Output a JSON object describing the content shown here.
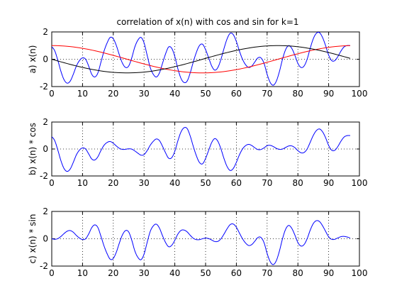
{
  "figure": {
    "title": "correlation of x(n) with cos and sin for k=1"
  },
  "colors": {
    "blue": "#0000ff",
    "red": "#ff0000",
    "black": "#000000",
    "background": "#ffffff"
  },
  "chart_data": [
    {
      "type": "line",
      "title": "correlation of x(n) with cos and sin for k=1",
      "xlabel": "",
      "ylabel": "a) x(n)",
      "xlim": [
        0,
        100
      ],
      "ylim": [
        -2,
        2
      ],
      "x_ticks": [
        0,
        10,
        20,
        30,
        40,
        50,
        60,
        70,
        80,
        90,
        100
      ],
      "y_ticks": [
        -2,
        0,
        2
      ],
      "grid": true,
      "series": [
        {
          "color": "blue",
          "x": [
            0,
            1,
            2,
            3,
            4,
            5,
            6,
            7,
            8,
            9,
            10,
            11,
            12,
            13,
            14,
            15,
            16,
            17,
            18,
            19,
            20,
            21,
            22,
            23,
            24,
            25,
            26,
            27,
            28,
            29,
            30,
            31,
            32,
            33,
            34,
            35,
            36,
            37,
            38,
            39,
            40,
            41,
            42,
            43,
            44,
            45,
            46,
            47,
            48,
            49,
            50,
            51,
            52,
            53,
            54,
            55,
            56,
            57,
            58,
            59,
            60,
            61,
            62,
            63,
            64,
            65,
            66,
            67,
            68,
            69,
            70,
            71,
            72,
            73,
            74,
            75,
            76,
            77,
            78,
            79,
            80,
            81,
            82,
            83,
            84,
            85,
            86,
            87,
            88,
            89,
            90,
            91,
            92,
            93,
            94,
            95,
            96,
            97
          ],
          "y": [
            0.9,
            0.6,
            -0.1,
            -0.9,
            -1.5,
            -1.75,
            -1.6,
            -1.1,
            -0.5,
            -0.1,
            0.1,
            0.0,
            -0.5,
            -1.1,
            -1.3,
            -1.0,
            -0.2,
            0.6,
            1.2,
            1.6,
            1.5,
            1.0,
            0.3,
            -0.3,
            -0.6,
            -0.5,
            0.1,
            0.9,
            1.4,
            1.6,
            1.2,
            0.3,
            -0.6,
            -1.1,
            -1.3,
            -1.0,
            -0.3,
            0.4,
            0.9,
            0.8,
            0.2,
            -0.7,
            -1.4,
            -1.7,
            -1.6,
            -1.0,
            -0.2,
            0.5,
            1.0,
            1.1,
            0.7,
            0.1,
            -0.5,
            -0.8,
            -0.6,
            0.0,
            0.8,
            1.5,
            1.9,
            1.8,
            1.3,
            0.6,
            0.0,
            -0.4,
            -0.6,
            -0.5,
            -0.2,
            0.1,
            0.1,
            -0.3,
            -1.1,
            -1.7,
            -1.9,
            -1.6,
            -0.9,
            0.0,
            0.7,
            1.0,
            0.8,
            0.3,
            -0.3,
            -0.6,
            -0.5,
            0.0,
            0.8,
            1.5,
            1.9,
            1.95,
            1.6,
            1.0,
            0.3,
            -0.1,
            -0.1,
            0.2,
            0.6,
            0.9,
            1.0,
            1.0
          ]
        },
        {
          "color": "red",
          "function": "cos",
          "period": 98,
          "x_range": [
            0,
            97
          ],
          "y_at_samples": {
            "0": 1.0,
            "24.5": 0.0,
            "49": -1.0,
            "73.5": 0.0,
            "97": 1.0
          }
        },
        {
          "color": "black",
          "function": "-sin",
          "period": 98,
          "x_range": [
            0,
            97
          ],
          "y_at_samples": {
            "0": 0.0,
            "24.5": -1.0,
            "49": 0.0,
            "73.5": 1.0,
            "97": 0.0
          }
        }
      ]
    },
    {
      "type": "line",
      "title": "",
      "xlabel": "",
      "ylabel": "b) x(n) * cos",
      "xlim": [
        0,
        100
      ],
      "ylim": [
        -2,
        2
      ],
      "x_ticks": [
        0,
        10,
        20,
        30,
        40,
        50,
        60,
        70,
        80,
        90,
        100
      ],
      "y_ticks": [
        -2,
        0,
        2
      ],
      "grid": true,
      "series": [
        {
          "color": "blue",
          "derived_from": "x(n) * cos",
          "x_range": [
            0,
            97
          ]
        }
      ]
    },
    {
      "type": "line",
      "title": "",
      "xlabel": "",
      "ylabel": "c) x(n) * sin",
      "xlim": [
        0,
        100
      ],
      "ylim": [
        -2,
        2
      ],
      "x_ticks": [
        0,
        10,
        20,
        30,
        40,
        50,
        60,
        70,
        80,
        90,
        100
      ],
      "y_ticks": [
        -2,
        0,
        2
      ],
      "grid": true,
      "series": [
        {
          "color": "blue",
          "derived_from": "x(n) * sin",
          "x_range": [
            0,
            97
          ]
        }
      ]
    }
  ]
}
